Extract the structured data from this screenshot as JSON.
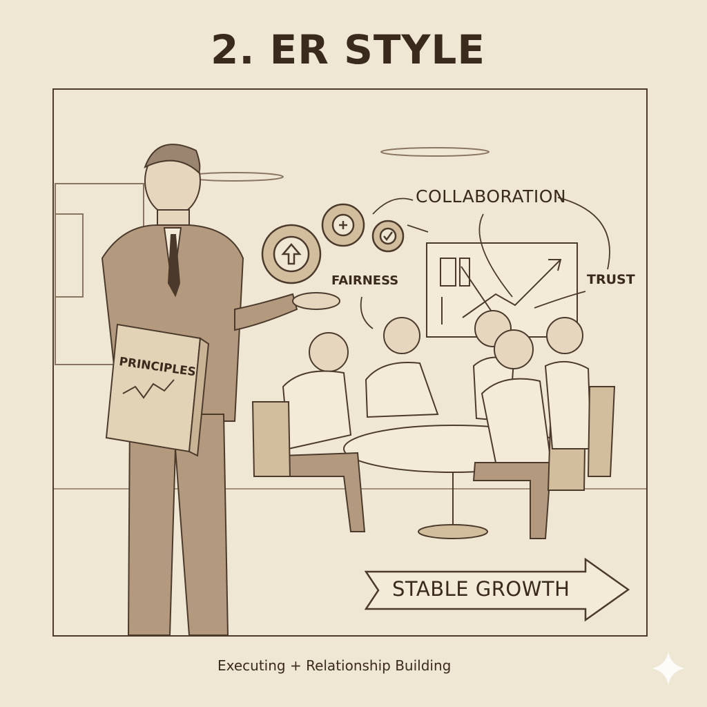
{
  "title": "2. ER STYLE",
  "scene": {
    "labels": {
      "collaboration": "COLLABORATION",
      "fairness": "FAIRNESS",
      "trust": "TRUST",
      "book": "PRINCIPLES"
    },
    "banner": "STABLE GROWTH"
  },
  "caption": "Executing + Relationship Building",
  "colors": {
    "background": "#efe6d3",
    "ink": "#3a2a1e",
    "suit": "#b39a7e",
    "accent": "#d2bd9c"
  }
}
